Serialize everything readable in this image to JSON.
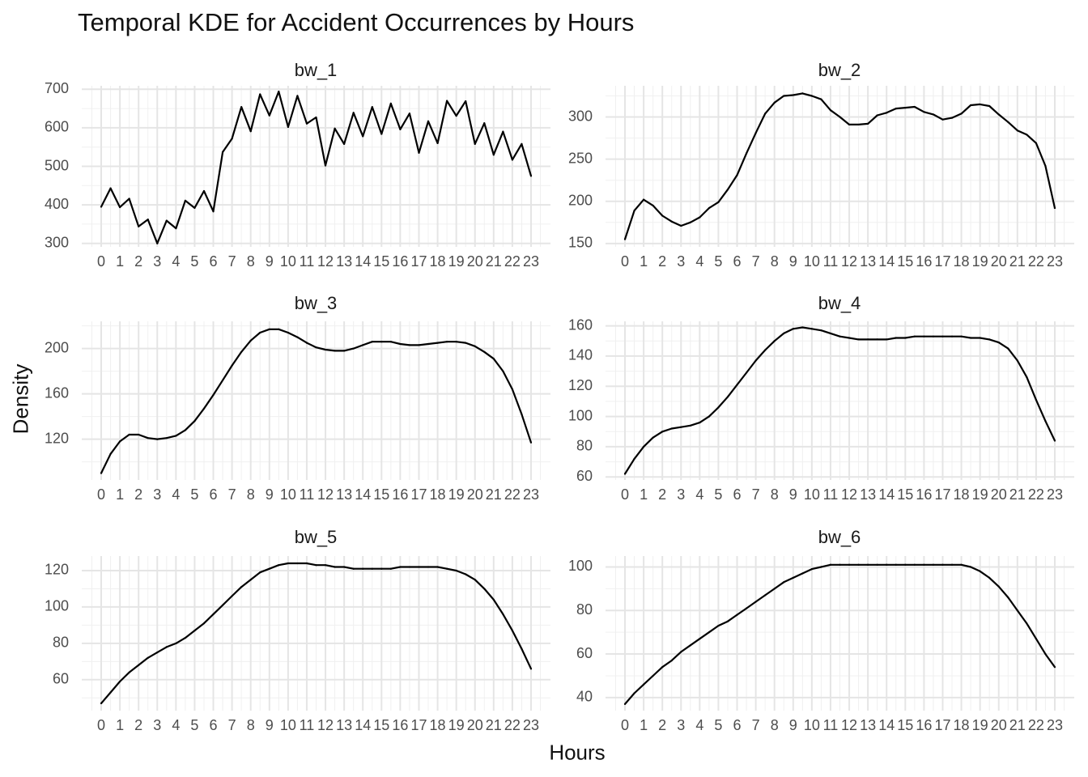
{
  "title": "Temporal KDE for Accident Occurrences by Hours",
  "xlabel": "Hours",
  "ylabel": "Density",
  "colors": {
    "line": "#000000",
    "grid_major": "#e5e5e5",
    "grid_minor": "#f0f0f0",
    "text": "#4d4d4d",
    "panel_title": "#1a1a1a"
  },
  "chart_data": [
    {
      "type": "line",
      "panel": "bw_1",
      "x": [
        0,
        0.5,
        1,
        1.5,
        2,
        2.5,
        3,
        3.5,
        4,
        4.5,
        5,
        5.5,
        6,
        6.5,
        7,
        7.5,
        8,
        8.5,
        9,
        9.5,
        10,
        10.5,
        11,
        11.5,
        12,
        12.5,
        13,
        13.5,
        14,
        14.5,
        15,
        15.5,
        16,
        16.5,
        17,
        17.5,
        18,
        18.5,
        19,
        19.5,
        20,
        20.5,
        21,
        21.5,
        22,
        22.5,
        23
      ],
      "y": [
        395,
        443,
        394,
        416,
        344,
        362,
        300,
        359,
        339,
        411,
        392,
        436,
        383,
        537,
        572,
        654,
        591,
        687,
        632,
        694,
        602,
        683,
        611,
        627,
        502,
        598,
        558,
        639,
        578,
        654,
        584,
        663,
        596,
        637,
        535,
        617,
        560,
        670,
        631,
        669,
        558,
        612,
        530,
        590,
        517,
        558,
        475
      ],
      "x_ticks": [
        "0",
        "1",
        "2",
        "3",
        "4",
        "5",
        "6",
        "7",
        "8",
        "9",
        "10",
        "11",
        "12",
        "13",
        "14",
        "15",
        "16",
        "17",
        "18",
        "19",
        "20",
        "21",
        "22",
        "23"
      ],
      "y_ticks": [
        300,
        400,
        500,
        600,
        700
      ],
      "ylim": [
        291,
        709
      ]
    },
    {
      "type": "line",
      "panel": "bw_2",
      "x": [
        0,
        0.5,
        1,
        1.5,
        2,
        2.5,
        3,
        3.5,
        4,
        4.5,
        5,
        5.5,
        6,
        6.5,
        7,
        7.5,
        8,
        8.5,
        9,
        9.5,
        10,
        10.5,
        11,
        11.5,
        12,
        12.5,
        13,
        13.5,
        14,
        14.5,
        15,
        15.5,
        16,
        16.5,
        17,
        17.5,
        18,
        18.5,
        19,
        19.5,
        20,
        20.5,
        21,
        21.5,
        22,
        22.5,
        23
      ],
      "y": [
        155,
        189,
        202,
        195,
        183,
        176,
        171,
        175,
        181,
        192,
        199,
        214,
        231,
        257,
        281,
        304,
        317,
        325,
        326,
        328,
        325,
        321,
        308,
        300,
        291,
        291,
        292,
        302,
        305,
        310,
        311,
        312,
        306,
        303,
        297,
        299,
        304,
        314,
        315,
        313,
        303,
        294,
        284,
        279,
        269,
        242,
        192
      ],
      "x_ticks": [
        "0",
        "1",
        "2",
        "3",
        "4",
        "5",
        "6",
        "7",
        "8",
        "9",
        "10",
        "11",
        "12",
        "13",
        "14",
        "15",
        "16",
        "17",
        "18",
        "19",
        "20",
        "21",
        "22",
        "23"
      ],
      "y_ticks": [
        150,
        200,
        250,
        300
      ],
      "ylim": [
        146,
        337
      ]
    },
    {
      "type": "line",
      "panel": "bw_3",
      "x": [
        0,
        0.5,
        1,
        1.5,
        2,
        2.5,
        3,
        3.5,
        4,
        4.5,
        5,
        5.5,
        6,
        6.5,
        7,
        7.5,
        8,
        8.5,
        9,
        9.5,
        10,
        10.5,
        11,
        11.5,
        12,
        12.5,
        13,
        13.5,
        14,
        14.5,
        15,
        15.5,
        16,
        16.5,
        17,
        17.5,
        18,
        18.5,
        19,
        19.5,
        20,
        20.5,
        21,
        21.5,
        22,
        22.5,
        23
      ],
      "y": [
        90,
        107,
        118,
        124,
        124,
        121,
        120,
        121,
        123,
        128,
        136,
        147,
        159,
        172,
        185,
        197,
        207,
        214,
        217,
        217,
        214,
        210,
        205,
        201,
        199,
        198,
        198,
        200,
        203,
        206,
        206,
        206,
        204,
        203,
        203,
        204,
        205,
        206,
        206,
        205,
        202,
        197,
        191,
        180,
        164,
        142,
        117
      ],
      "x_ticks": [
        "0",
        "1",
        "2",
        "3",
        "4",
        "5",
        "6",
        "7",
        "8",
        "9",
        "10",
        "11",
        "12",
        "13",
        "14",
        "15",
        "16",
        "17",
        "18",
        "19",
        "20",
        "21",
        "22",
        "23"
      ],
      "y_ticks": [
        120,
        160,
        200
      ],
      "ylim": [
        84,
        224
      ]
    },
    {
      "type": "line",
      "panel": "bw_4",
      "x": [
        0,
        0.5,
        1,
        1.5,
        2,
        2.5,
        3,
        3.5,
        4,
        4.5,
        5,
        5.5,
        6,
        6.5,
        7,
        7.5,
        8,
        8.5,
        9,
        9.5,
        10,
        10.5,
        11,
        11.5,
        12,
        12.5,
        13,
        13.5,
        14,
        14.5,
        15,
        15.5,
        16,
        16.5,
        17,
        17.5,
        18,
        18.5,
        19,
        19.5,
        20,
        20.5,
        21,
        21.5,
        22,
        22.5,
        23
      ],
      "y": [
        62,
        72,
        80,
        86,
        90,
        92,
        93,
        94,
        96,
        100,
        106,
        113,
        121,
        129,
        137,
        144,
        150,
        155,
        158,
        159,
        158,
        157,
        155,
        153,
        152,
        151,
        151,
        151,
        151,
        152,
        152,
        153,
        153,
        153,
        153,
        153,
        153,
        152,
        152,
        151,
        149,
        145,
        137,
        126,
        111,
        97,
        84
      ],
      "x_ticks": [
        "0",
        "1",
        "2",
        "3",
        "4",
        "5",
        "6",
        "7",
        "8",
        "9",
        "10",
        "11",
        "12",
        "13",
        "14",
        "15",
        "16",
        "17",
        "18",
        "19",
        "20",
        "21",
        "22",
        "23"
      ],
      "y_ticks": [
        60,
        80,
        100,
        120,
        140,
        160
      ],
      "ylim": [
        58,
        163
      ]
    },
    {
      "type": "line",
      "panel": "bw_5",
      "x": [
        0,
        0.5,
        1,
        1.5,
        2,
        2.5,
        3,
        3.5,
        4,
        4.5,
        5,
        5.5,
        6,
        6.5,
        7,
        7.5,
        8,
        8.5,
        9,
        9.5,
        10,
        10.5,
        11,
        11.5,
        12,
        12.5,
        13,
        13.5,
        14,
        14.5,
        15,
        15.5,
        16,
        16.5,
        17,
        17.5,
        18,
        18.5,
        19,
        19.5,
        20,
        20.5,
        21,
        21.5,
        22,
        22.5,
        23
      ],
      "y": [
        47,
        53,
        59,
        64,
        68,
        72,
        75,
        78,
        80,
        83,
        87,
        91,
        96,
        101,
        106,
        111,
        115,
        119,
        121,
        123,
        124,
        124,
        124,
        123,
        123,
        122,
        122,
        121,
        121,
        121,
        121,
        121,
        122,
        122,
        122,
        122,
        122,
        121,
        120,
        118,
        115,
        110,
        104,
        96,
        87,
        77,
        66
      ],
      "x_ticks": [
        "0",
        "1",
        "2",
        "3",
        "4",
        "5",
        "6",
        "7",
        "8",
        "9",
        "10",
        "11",
        "12",
        "13",
        "14",
        "15",
        "16",
        "17",
        "18",
        "19",
        "20",
        "21",
        "22",
        "23"
      ],
      "y_ticks": [
        60,
        80,
        100,
        120
      ],
      "ylim": [
        43,
        128
      ]
    },
    {
      "type": "line",
      "panel": "bw_6",
      "x": [
        0,
        0.5,
        1,
        1.5,
        2,
        2.5,
        3,
        3.5,
        4,
        4.5,
        5,
        5.5,
        6,
        6.5,
        7,
        7.5,
        8,
        8.5,
        9,
        9.5,
        10,
        10.5,
        11,
        11.5,
        12,
        12.5,
        13,
        13.5,
        14,
        14.5,
        15,
        15.5,
        16,
        16.5,
        17,
        17.5,
        18,
        18.5,
        19,
        19.5,
        20,
        20.5,
        21,
        21.5,
        22,
        22.5,
        23
      ],
      "y": [
        37,
        42,
        46,
        50,
        54,
        57,
        61,
        64,
        67,
        70,
        73,
        75,
        78,
        81,
        84,
        87,
        90,
        93,
        95,
        97,
        99,
        100,
        101,
        101,
        101,
        101,
        101,
        101,
        101,
        101,
        101,
        101,
        101,
        101,
        101,
        101,
        101,
        100,
        98,
        95,
        91,
        86,
        80,
        74,
        67,
        60,
        54
      ],
      "x_ticks": [
        "0",
        "1",
        "2",
        "3",
        "4",
        "5",
        "6",
        "7",
        "8",
        "9",
        "10",
        "11",
        "12",
        "13",
        "14",
        "15",
        "16",
        "17",
        "18",
        "19",
        "20",
        "21",
        "22",
        "23"
      ],
      "y_ticks": [
        40,
        60,
        80,
        100
      ],
      "ylim": [
        34,
        105
      ]
    }
  ]
}
